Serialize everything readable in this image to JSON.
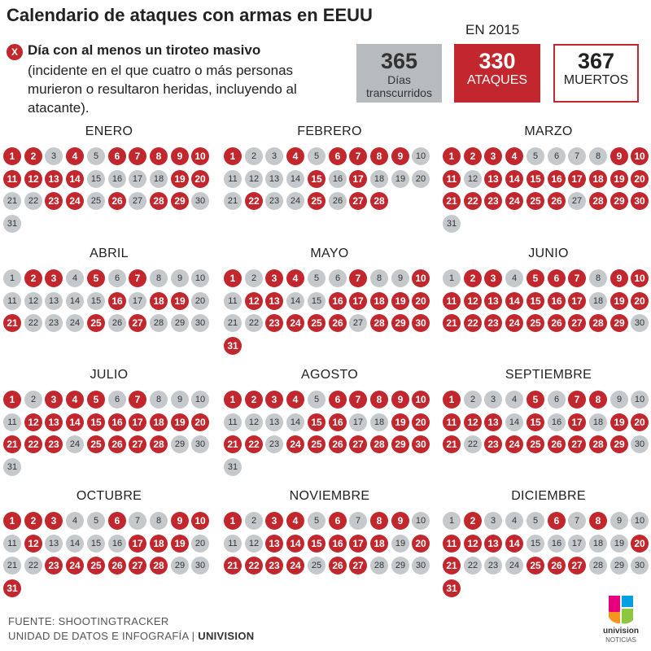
{
  "title": "Calendario de ataques con armas en EEUU",
  "legend": {
    "icon_text": "X",
    "bold": "Día con al menos un tiroteo masivo",
    "text": "(incidente en el que cuatro o más personas murieron o resultaron heridas, incluyendo al atacante)."
  },
  "year_label": "EN 2015",
  "stats": {
    "days": {
      "value": "365",
      "label": "Días transcurridos"
    },
    "attacks": {
      "value": "330",
      "label": "ATAQUES"
    },
    "dead": {
      "value": "367",
      "label": "MUERTOS"
    }
  },
  "colors": {
    "attack": "#c1272d",
    "no_attack": "#c6c9cb"
  },
  "months": [
    {
      "name": "ENERO",
      "days": 31,
      "attacks": [
        1,
        2,
        4,
        6,
        7,
        8,
        9,
        10,
        11,
        12,
        13,
        14,
        19,
        20,
        23,
        24,
        26,
        28,
        29
      ]
    },
    {
      "name": "FEBRERO",
      "days": 28,
      "attacks": [
        1,
        4,
        6,
        7,
        8,
        9,
        15,
        17,
        22,
        25,
        27,
        28
      ]
    },
    {
      "name": "MARZO",
      "days": 31,
      "attacks": [
        1,
        2,
        3,
        4,
        9,
        10,
        11,
        13,
        14,
        15,
        16,
        17,
        18,
        19,
        20,
        21,
        22,
        23,
        24,
        25,
        26,
        28,
        29,
        30
      ]
    },
    {
      "name": "ABRIL",
      "days": 30,
      "attacks": [
        2,
        3,
        5,
        7,
        16,
        18,
        19,
        21,
        25,
        27
      ]
    },
    {
      "name": "MAYO",
      "days": 31,
      "attacks": [
        1,
        3,
        4,
        7,
        10,
        12,
        13,
        16,
        17,
        18,
        19,
        20,
        23,
        24,
        25,
        26,
        28,
        29,
        30,
        31
      ]
    },
    {
      "name": "JUNIO",
      "days": 30,
      "attacks": [
        2,
        3,
        5,
        6,
        7,
        9,
        10,
        11,
        12,
        13,
        14,
        15,
        16,
        17,
        19,
        20,
        21,
        22,
        23,
        24,
        25,
        26,
        27,
        28,
        29
      ]
    },
    {
      "name": "JULIO",
      "days": 31,
      "attacks": [
        1,
        3,
        4,
        5,
        7,
        12,
        13,
        14,
        15,
        16,
        17,
        18,
        19,
        20,
        21,
        22,
        23,
        25,
        26,
        27,
        28
      ]
    },
    {
      "name": "AGOSTO",
      "days": 31,
      "attacks": [
        1,
        2,
        3,
        4,
        6,
        7,
        8,
        9,
        10,
        15,
        16,
        19,
        20,
        21,
        22,
        24,
        25,
        26,
        27,
        28,
        29,
        30
      ]
    },
    {
      "name": "SEPTIEMBRE",
      "days": 30,
      "attacks": [
        1,
        5,
        7,
        8,
        11,
        12,
        13,
        15,
        17,
        19,
        20,
        21,
        23,
        24,
        25,
        26,
        27,
        28,
        29
      ]
    },
    {
      "name": "OCTUBRE",
      "days": 31,
      "attacks": [
        1,
        2,
        3,
        6,
        9,
        10,
        12,
        17,
        18,
        19,
        23,
        24,
        25,
        26,
        27,
        28,
        31
      ]
    },
    {
      "name": "NOVIEMBRE",
      "days": 30,
      "attacks": [
        1,
        3,
        4,
        6,
        8,
        9,
        13,
        14,
        15,
        16,
        17,
        18,
        20,
        21,
        22,
        23,
        24,
        26,
        27
      ]
    },
    {
      "name": "DICIEMBRE",
      "days": 31,
      "attacks": [
        2,
        6,
        8,
        11,
        12,
        13,
        14,
        20,
        21,
        25,
        26,
        27,
        31
      ]
    }
  ],
  "footer": {
    "source": "FUENTE: SHOOTINGTRACKER",
    "unit": "UNIDAD DE DATOS E INFOGRAFÍA",
    "separator": "|",
    "brand": "UNIVISION"
  },
  "logo": {
    "name": "univision",
    "sub": "NOTICIAS"
  }
}
